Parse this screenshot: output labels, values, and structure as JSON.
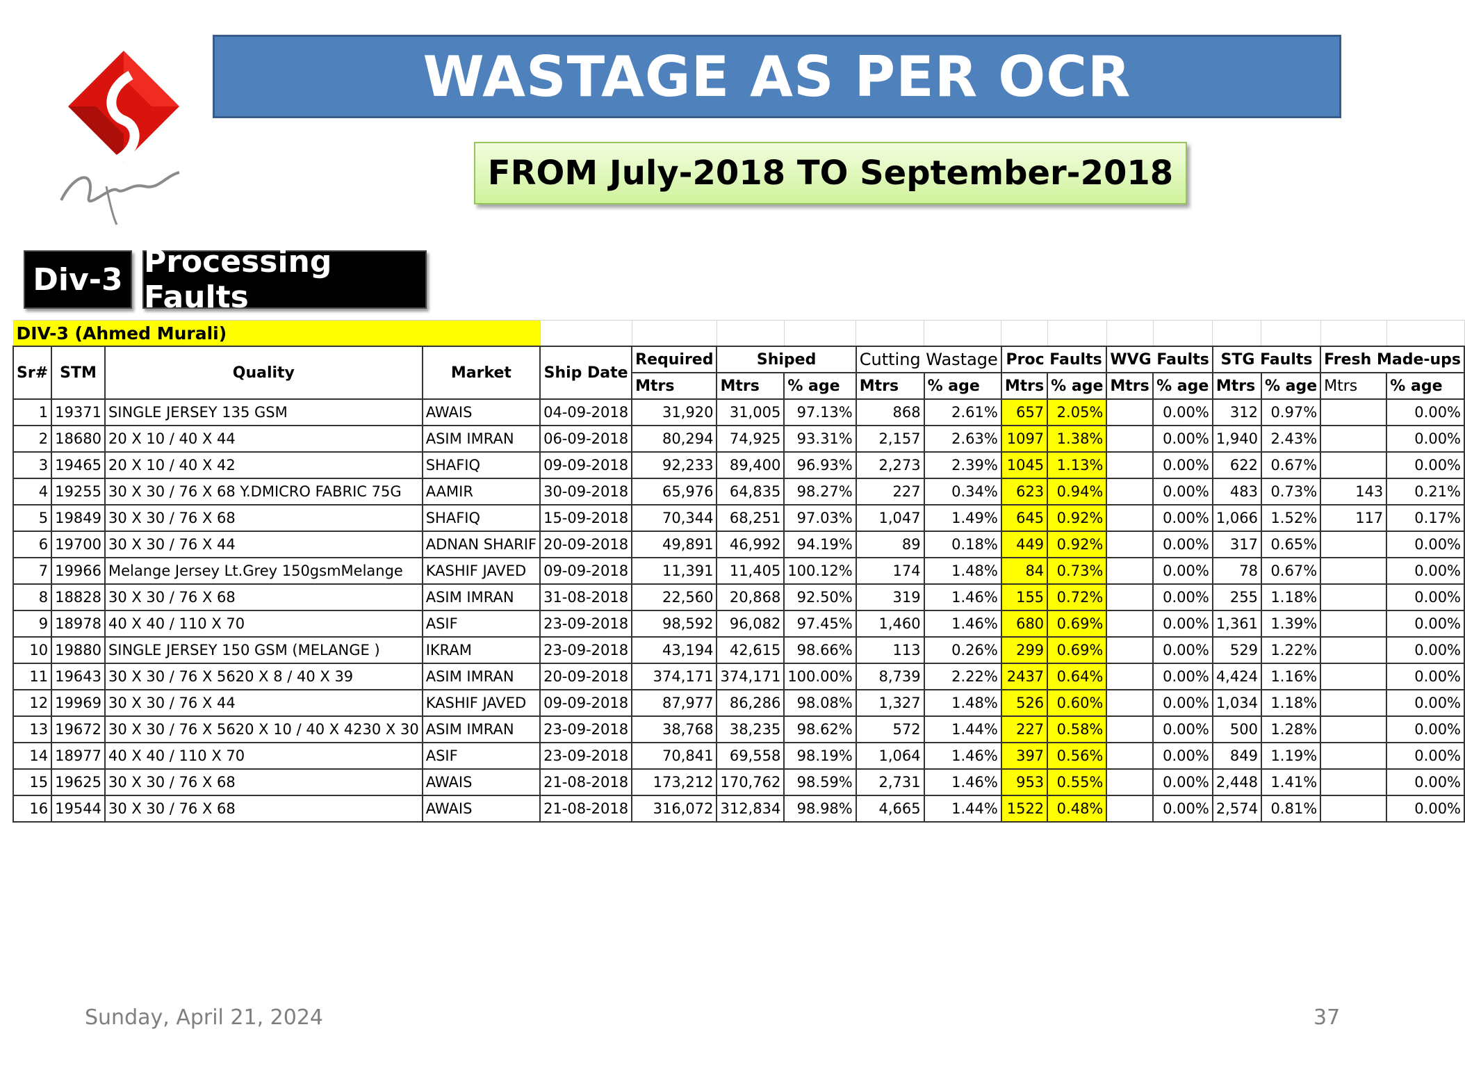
{
  "title": "WASTAGE AS PER OCR",
  "subtitle": "FROM July-2018 TO September-2018",
  "tags": {
    "div": "Div-3",
    "section": "Processing Faults"
  },
  "table": {
    "division_label": "DIV-3 (Ahmed Murali)",
    "headers": {
      "sr": "Sr#",
      "stm": "STM",
      "quality": "Quality",
      "market": "Market",
      "ship_date": "Ship Date",
      "required": "Required",
      "shiped": "Shiped",
      "cutting": "Cutting Wastage",
      "proc": "Proc Faults",
      "wvg": "WVG Faults",
      "stg": "STG Faults",
      "fresh": "Fresh Made-ups",
      "mtrs": "Mtrs",
      "mtrs_plain": "Mtrs",
      "pct": "% age"
    },
    "rows": [
      [
        "1",
        "19371",
        "SINGLE JERSEY 135 GSM",
        "AWAIS",
        "04-09-2018",
        "31,920",
        "31,005",
        "97.13%",
        "868",
        "2.61%",
        "657",
        "2.05%",
        "",
        "0.00%",
        "312",
        "0.97%",
        "",
        "0.00%"
      ],
      [
        "2",
        "18680",
        "20 X 10 / 40 X 44",
        "ASIM IMRAN",
        "06-09-2018",
        "80,294",
        "74,925",
        "93.31%",
        "2,157",
        "2.63%",
        "1097",
        "1.38%",
        "",
        "0.00%",
        "1,940",
        "2.43%",
        "",
        "0.00%"
      ],
      [
        "3",
        "19465",
        "20 X 10 / 40 X 42",
        "SHAFIQ",
        "09-09-2018",
        "92,233",
        "89,400",
        "96.93%",
        "2,273",
        "2.39%",
        "1045",
        "1.13%",
        "",
        "0.00%",
        "622",
        "0.67%",
        "",
        "0.00%"
      ],
      [
        "4",
        "19255",
        "30 X 30 / 76 X 68 Y.DMICRO FABRIC 75G",
        "AAMIR",
        "30-09-2018",
        "65,976",
        "64,835",
        "98.27%",
        "227",
        "0.34%",
        "623",
        "0.94%",
        "",
        "0.00%",
        "483",
        "0.73%",
        "143",
        "0.21%"
      ],
      [
        "5",
        "19849",
        "30 X 30 / 76 X 68",
        "SHAFIQ",
        "15-09-2018",
        "70,344",
        "68,251",
        "97.03%",
        "1,047",
        "1.49%",
        "645",
        "0.92%",
        "",
        "0.00%",
        "1,066",
        "1.52%",
        "117",
        "0.17%"
      ],
      [
        "6",
        "19700",
        "30 X 30 / 76 X 44",
        "ADNAN SHARIF",
        "20-09-2018",
        "49,891",
        "46,992",
        "94.19%",
        "89",
        "0.18%",
        "449",
        "0.92%",
        "",
        "0.00%",
        "317",
        "0.65%",
        "",
        "0.00%"
      ],
      [
        "7",
        "19966",
        "Melange Jersey Lt.Grey 150gsmMelange",
        "KASHIF JAVED",
        "09-09-2018",
        "11,391",
        "11,405",
        "100.12%",
        "174",
        "1.48%",
        "84",
        "0.73%",
        "",
        "0.00%",
        "78",
        "0.67%",
        "",
        "0.00%"
      ],
      [
        "8",
        "18828",
        "30 X 30 / 76 X 68",
        "ASIM IMRAN",
        "31-08-2018",
        "22,560",
        "20,868",
        "92.50%",
        "319",
        "1.46%",
        "155",
        "0.72%",
        "",
        "0.00%",
        "255",
        "1.18%",
        "",
        "0.00%"
      ],
      [
        "9",
        "18978",
        "40 X 40 / 110 X 70",
        "ASIF",
        "23-09-2018",
        "98,592",
        "96,082",
        "97.45%",
        "1,460",
        "1.46%",
        "680",
        "0.69%",
        "",
        "0.00%",
        "1,361",
        "1.39%",
        "",
        "0.00%"
      ],
      [
        "10",
        "19880",
        "SINGLE JERSEY 150 GSM (MELANGE )",
        "IKRAM",
        "23-09-2018",
        "43,194",
        "42,615",
        "98.66%",
        "113",
        "0.26%",
        "299",
        "0.69%",
        "",
        "0.00%",
        "529",
        "1.22%",
        "",
        "0.00%"
      ],
      [
        "11",
        "19643",
        "30 X 30 / 76 X 5620 X 8 / 40 X 39",
        "ASIM IMRAN",
        "20-09-2018",
        "374,171",
        "374,171",
        "100.00%",
        "8,739",
        "2.22%",
        "2437",
        "0.64%",
        "",
        "0.00%",
        "4,424",
        "1.16%",
        "",
        "0.00%"
      ],
      [
        "12",
        "19969",
        "30 X 30 / 76 X 44",
        "KASHIF JAVED",
        "09-09-2018",
        "87,977",
        "86,286",
        "98.08%",
        "1,327",
        "1.48%",
        "526",
        "0.60%",
        "",
        "0.00%",
        "1,034",
        "1.18%",
        "",
        "0.00%"
      ],
      [
        "13",
        "19672",
        "30 X 30 / 76 X 5620 X 10 / 40 X 4230 X 30",
        "ASIM IMRAN",
        "23-09-2018",
        "38,768",
        "38,235",
        "98.62%",
        "572",
        "1.44%",
        "227",
        "0.58%",
        "",
        "0.00%",
        "500",
        "1.28%",
        "",
        "0.00%"
      ],
      [
        "14",
        "18977",
        "40 X 40 / 110 X 70",
        "ASIF",
        "23-09-2018",
        "70,841",
        "69,558",
        "98.19%",
        "1,064",
        "1.46%",
        "397",
        "0.56%",
        "",
        "0.00%",
        "849",
        "1.19%",
        "",
        "0.00%"
      ],
      [
        "15",
        "19625",
        "30 X 30 / 76 X 68",
        "AWAIS",
        "21-08-2018",
        "173,212",
        "170,762",
        "98.59%",
        "2,731",
        "1.46%",
        "953",
        "0.55%",
        "",
        "0.00%",
        "2,448",
        "1.41%",
        "",
        "0.00%"
      ],
      [
        "16",
        "19544",
        "30 X 30 / 76 X 68",
        "AWAIS",
        "21-08-2018",
        "316,072",
        "312,834",
        "98.98%",
        "4,665",
        "1.44%",
        "1522",
        "0.48%",
        "",
        "0.00%",
        "2,574",
        "0.81%",
        "",
        "0.00%"
      ]
    ]
  },
  "footer": {
    "date": "Sunday, April 21, 2024",
    "page": "37"
  },
  "colors": {
    "title_bg": "#4f81bd",
    "subtitle_bg": "#d7f5a8",
    "highlight": "#ffff00",
    "logo_red": "#d9140e"
  }
}
